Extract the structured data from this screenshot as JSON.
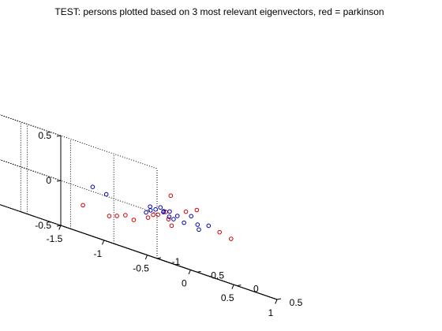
{
  "chart_data": {
    "type": "scatter",
    "title": "TEST: persons plotted based on 3 most relevant eigenvectors, red = parkinson",
    "xlabel": "",
    "ylabel": "",
    "zlabel": "",
    "xlim": [
      -1.5,
      1
    ],
    "ylim": [
      -1,
      0.5
    ],
    "zlim": [
      -0.5,
      0.5
    ],
    "x_ticks": [
      "-1.5",
      "-1",
      "-0.5",
      "0",
      "0.5",
      "1"
    ],
    "y_ticks": [
      "-1",
      "-0.5",
      "0",
      "0.5"
    ],
    "z_ticks": [
      "-0.5",
      "0",
      "0.5"
    ],
    "grid": true,
    "box": false,
    "series": [
      {
        "marker": "circle",
        "color": "#cc0000",
        "points": [
          {
            "x": -0.09,
            "y": 0.35,
            "z": 0.25
          },
          {
            "x": 0.15,
            "y": 0.28,
            "z": 0.13
          },
          {
            "x": 0.23,
            "y": 0.33,
            "z": 0.19
          },
          {
            "x": 0.53,
            "y": 0.29,
            "z": 0.03
          },
          {
            "x": 0.7,
            "y": 0.25,
            "z": 0.0
          },
          {
            "x": 0.29,
            "y": -0.05,
            "z": -0.08
          },
          {
            "x": 0.18,
            "y": 0.03,
            "z": -0.02
          },
          {
            "x": 0.04,
            "y": 0.05,
            "z": -0.01
          },
          {
            "x": 0.0,
            "y": 0.19,
            "z": 0.05
          },
          {
            "x": -0.09,
            "y": 0.13,
            "z": -0.03
          },
          {
            "x": -0.02,
            "y": -0.01,
            "z": -0.08
          },
          {
            "x": 0.0,
            "y": -0.21,
            "z": -0.16
          },
          {
            "x": -0.18,
            "y": -0.12,
            "z": -0.14
          },
          {
            "x": -0.2,
            "y": -0.3,
            "z": -0.21
          },
          {
            "x": -0.43,
            "y": -0.38,
            "z": -0.19
          },
          {
            "x": -0.25,
            "y": -0.15,
            "z": -0.18
          }
        ]
      },
      {
        "marker": "circle",
        "color": "#0000aa",
        "points": [
          {
            "x": 0.22,
            "y": 0.27,
            "z": 0.1
          },
          {
            "x": 0.34,
            "y": 0.22,
            "z": 0.03
          },
          {
            "x": 0.44,
            "y": 0.25,
            "z": 0.06
          },
          {
            "x": 0.42,
            "y": 0.15,
            "z": -0.02
          },
          {
            "x": 0.35,
            "y": 0.04,
            "z": 0.0
          },
          {
            "x": 0.05,
            "y": 0.11,
            "z": 0.05
          },
          {
            "x": 0.11,
            "y": 0.12,
            "z": 0.07
          },
          {
            "x": 0.19,
            "y": 0.13,
            "z": 0.05
          },
          {
            "x": 0.1,
            "y": 0.18,
            "z": 0.0
          },
          {
            "x": -0.08,
            "y": 0.21,
            "z": 0.08
          },
          {
            "x": 0.13,
            "y": 0.02,
            "z": 0.04
          },
          {
            "x": 0.16,
            "y": 0.06,
            "z": 0.01
          },
          {
            "x": 0.05,
            "y": -0.06,
            "z": 0.05
          },
          {
            "x": 0.04,
            "y": 0.02,
            "z": 0.04
          },
          {
            "x": 0.0,
            "y": 0.0,
            "z": 0.01
          },
          {
            "x": -0.07,
            "y": 0.02,
            "z": -0.03
          },
          {
            "x": -0.65,
            "y": 0.15,
            "z": 0.02
          },
          {
            "x": -0.9,
            "y": 0.25,
            "z": 0.05
          }
        ]
      }
    ]
  }
}
